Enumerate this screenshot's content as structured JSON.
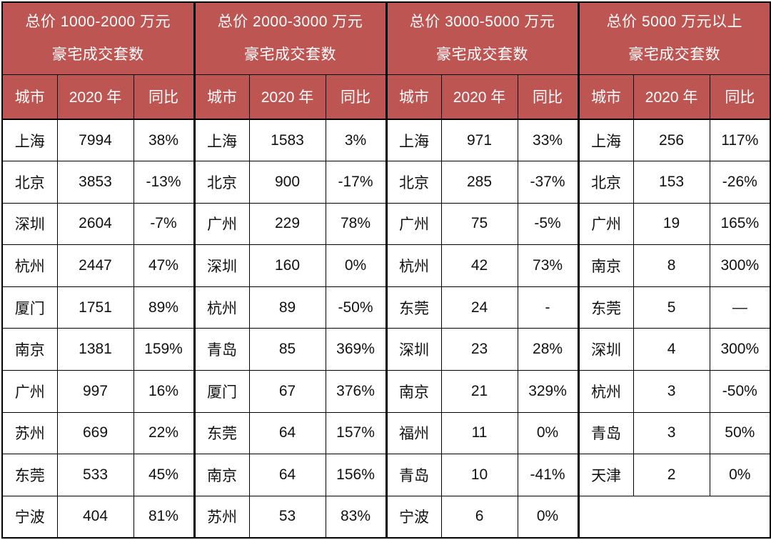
{
  "colors": {
    "header_bg": "#bd5653",
    "header_text": "#ffffff",
    "body_text": "#111111",
    "border": "#000000",
    "body_bg": "#ffffff"
  },
  "chart_data": {
    "type": "table",
    "column_headers": [
      "城市",
      "2020 年",
      "同比"
    ],
    "groups": [
      {
        "title_line1": "总价 1000-2000 万元",
        "title_line2": "豪宅成交套数",
        "rows": [
          [
            "上海",
            "7994",
            "38%"
          ],
          [
            "北京",
            "3853",
            "-13%"
          ],
          [
            "深圳",
            "2604",
            "-7%"
          ],
          [
            "杭州",
            "2447",
            "47%"
          ],
          [
            "厦门",
            "1751",
            "89%"
          ],
          [
            "南京",
            "1381",
            "159%"
          ],
          [
            "广州",
            "997",
            "16%"
          ],
          [
            "苏州",
            "669",
            "22%"
          ],
          [
            "东莞",
            "533",
            "45%"
          ],
          [
            "宁波",
            "404",
            "81%"
          ]
        ]
      },
      {
        "title_line1": "总价 2000-3000 万元",
        "title_line2": "豪宅成交套数",
        "rows": [
          [
            "上海",
            "1583",
            "3%"
          ],
          [
            "北京",
            "900",
            "-17%"
          ],
          [
            "广州",
            "229",
            "78%"
          ],
          [
            "深圳",
            "160",
            "0%"
          ],
          [
            "杭州",
            "89",
            "-50%"
          ],
          [
            "青岛",
            "85",
            "369%"
          ],
          [
            "厦门",
            "67",
            "376%"
          ],
          [
            "东莞",
            "64",
            "157%"
          ],
          [
            "南京",
            "64",
            "156%"
          ],
          [
            "苏州",
            "53",
            "83%"
          ]
        ]
      },
      {
        "title_line1": "总价 3000-5000 万元",
        "title_line2": "豪宅成交套数",
        "rows": [
          [
            "上海",
            "971",
            "33%"
          ],
          [
            "北京",
            "285",
            "-37%"
          ],
          [
            "广州",
            "75",
            "-5%"
          ],
          [
            "杭州",
            "42",
            "73%"
          ],
          [
            "东莞",
            "24",
            "-"
          ],
          [
            "深圳",
            "23",
            "28%"
          ],
          [
            "南京",
            "21",
            "329%"
          ],
          [
            "福州",
            "11",
            "0%"
          ],
          [
            "青岛",
            "10",
            "-41%"
          ],
          [
            "宁波",
            "6",
            "0%"
          ]
        ]
      },
      {
        "title_line1": "总价 5000 万元以上",
        "title_line2": "豪宅成交套数",
        "rows": [
          [
            "上海",
            "256",
            "117%"
          ],
          [
            "北京",
            "153",
            "-26%"
          ],
          [
            "广州",
            "19",
            "165%"
          ],
          [
            "南京",
            "8",
            "300%"
          ],
          [
            "东莞",
            "5",
            "—"
          ],
          [
            "深圳",
            "4",
            "300%"
          ],
          [
            "杭州",
            "3",
            "-50%"
          ],
          [
            "青岛",
            "3",
            "50%"
          ],
          [
            "天津",
            "2",
            "0%"
          ]
        ]
      }
    ]
  }
}
